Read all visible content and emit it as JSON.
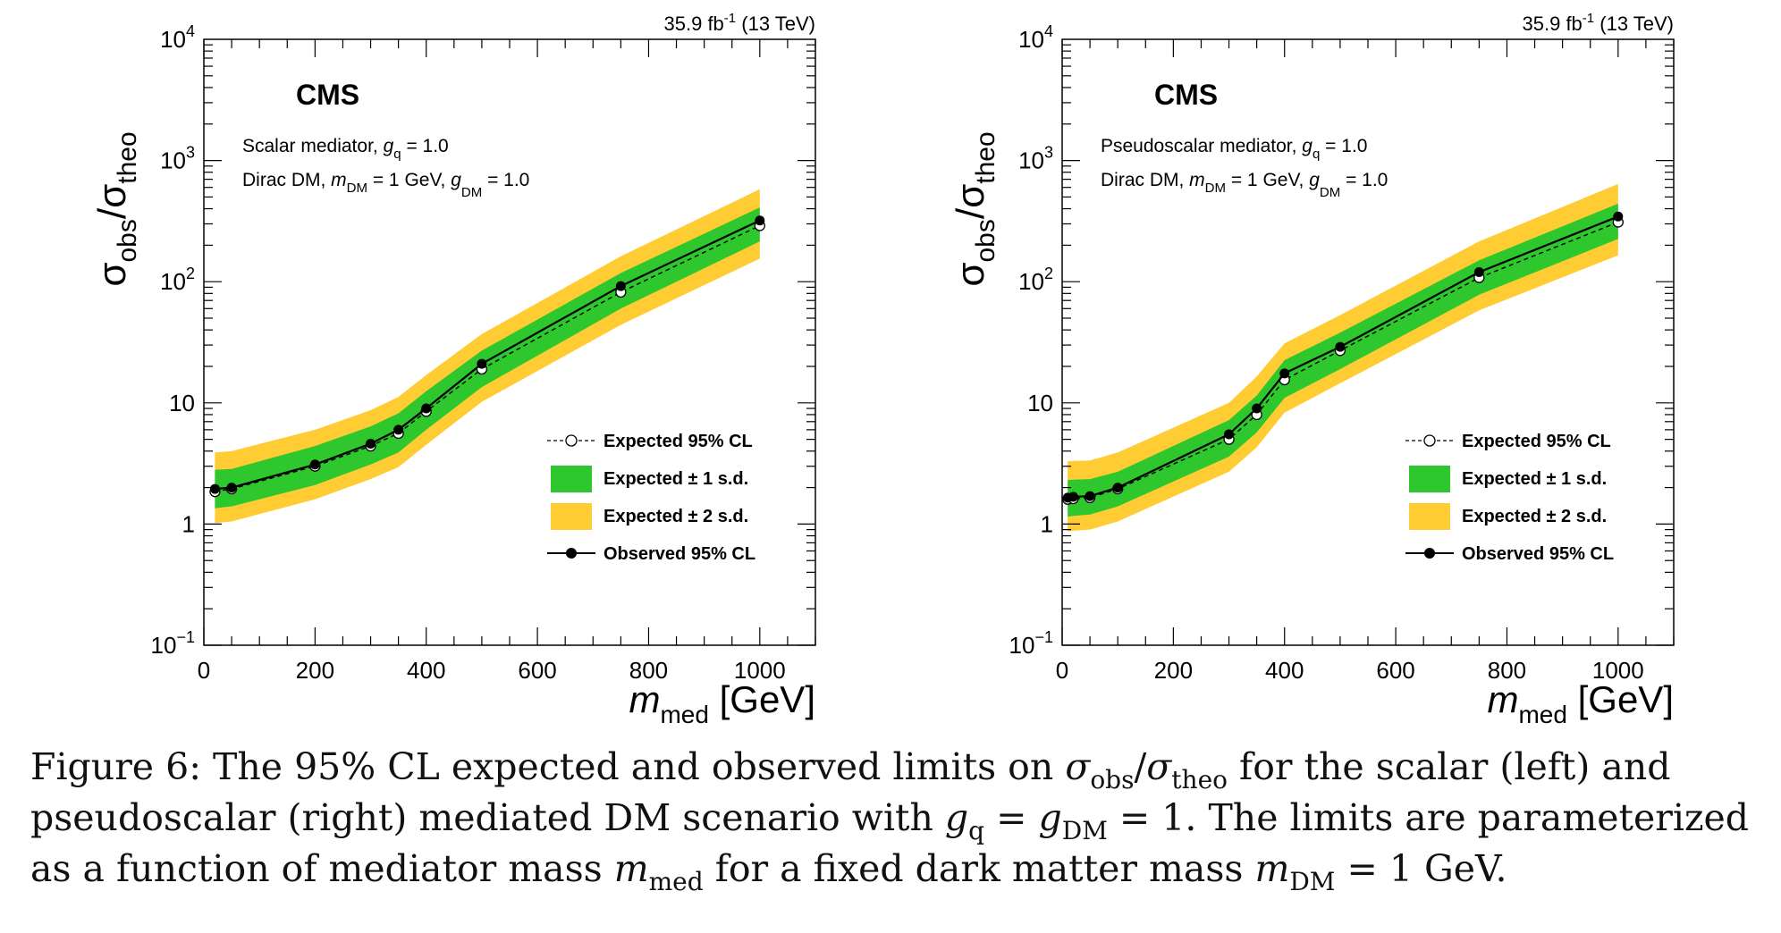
{
  "figure": {
    "caption_label": "Figure 6:",
    "caption_parts": [
      {
        "t": "Figure 6: The 95% CL expected and observed limits on "
      },
      {
        "t": "σ",
        "i": true
      },
      {
        "t": "obs",
        "sub": true
      },
      {
        "t": "/"
      },
      {
        "t": "σ",
        "i": true
      },
      {
        "t": "theo",
        "sub": true
      },
      {
        "t": " for the scalar (left) and pseudoscalar (right) mediated DM scenario with "
      },
      {
        "t": "g",
        "i": true
      },
      {
        "t": "q",
        "sub": true
      },
      {
        "t": " = "
      },
      {
        "t": "g",
        "i": true
      },
      {
        "t": "DM",
        "sub": true
      },
      {
        "t": " = 1. The limits are parameterized as a function of mediator mass "
      },
      {
        "t": "m",
        "i": true
      },
      {
        "t": "med",
        "sub": true
      },
      {
        "t": " for a fixed dark matter mass "
      },
      {
        "t": "m",
        "i": true
      },
      {
        "t": "DM",
        "sub": true
      },
      {
        "t": " = 1 GeV."
      }
    ]
  },
  "chart_data": [
    {
      "type": "line",
      "lumi_label": "35.9 fb",
      "lumi_exp": "-1",
      "energy_label": " (13 TeV)",
      "experiment": "CMS",
      "annotation_line1_prefix": "Scalar mediator, ",
      "annotation_line1_var": "g",
      "annotation_line1_sub": "q",
      "annotation_line1_suffix": " = 1.0",
      "annotation_line2_prefix": "Dirac DM, ",
      "annotation_line2_var1": "m",
      "annotation_line2_sub1": "DM",
      "annotation_line2_mid": " = 1 GeV, ",
      "annotation_line2_var2": "g",
      "annotation_line2_sub2": "DM",
      "annotation_line2_suffix": " = 1.0",
      "ylabel_main": "σ",
      "ylabel_sub1": "obs",
      "ylabel_sep": "/σ",
      "ylabel_sub2": "theo",
      "xlabel_var": "m",
      "xlabel_sub": "med",
      "xlabel_unit": " [GeV]",
      "xlim": [
        0,
        1100
      ],
      "ylim": [
        0.1,
        10000
      ],
      "yscale": "log",
      "x_ticks": [
        "0",
        "200",
        "400",
        "600",
        "800",
        "1000"
      ],
      "y_ticks": [
        {
          "base": "10",
          "exp": "−1",
          "value": 0.1
        },
        {
          "base": "1",
          "exp": "",
          "value": 1
        },
        {
          "base": "10",
          "exp": "",
          "value": 10
        },
        {
          "base": "10",
          "exp": "2",
          "value": 100
        },
        {
          "base": "10",
          "exp": "3",
          "value": 1000
        },
        {
          "base": "10",
          "exp": "4",
          "value": 10000
        }
      ],
      "legend": [
        "Expected 95% CL",
        "Expected ± 1 s.d.",
        "Expected ± 2 s.d.",
        "Observed 95% CL"
      ],
      "colors": {
        "band1": "#2ec72e",
        "band2": "#ffcc33",
        "line": "#000000"
      },
      "x": [
        20,
        50,
        200,
        300,
        350,
        400,
        500,
        750,
        1000
      ],
      "observed": [
        1.95,
        2.0,
        3.1,
        4.6,
        6.0,
        9.0,
        21,
        92,
        320
      ],
      "expected": [
        1.85,
        1.95,
        3.0,
        4.4,
        5.6,
        8.5,
        19,
        82,
        290
      ],
      "band1_low": [
        1.35,
        1.4,
        2.1,
        3.1,
        3.9,
        6.0,
        13.5,
        60,
        215
      ],
      "band1_high": [
        2.8,
        2.85,
        4.4,
        6.4,
        8.2,
        12.5,
        27,
        118,
        410
      ],
      "band2_low": [
        1.02,
        1.05,
        1.6,
        2.35,
        2.95,
        4.5,
        10.2,
        44,
        155
      ],
      "band2_high": [
        3.9,
        4.0,
        6.0,
        8.7,
        11.2,
        17.0,
        37,
        162,
        580
      ]
    },
    {
      "type": "line",
      "lumi_label": "35.9 fb",
      "lumi_exp": "-1",
      "energy_label": " (13 TeV)",
      "experiment": "CMS",
      "annotation_line1_prefix": "Pseudoscalar mediator, ",
      "annotation_line1_var": "g",
      "annotation_line1_sub": "q",
      "annotation_line1_suffix": " = 1.0",
      "annotation_line2_prefix": "Dirac DM, ",
      "annotation_line2_var1": "m",
      "annotation_line2_sub1": "DM",
      "annotation_line2_mid": " = 1 GeV, ",
      "annotation_line2_var2": "g",
      "annotation_line2_sub2": "DM",
      "annotation_line2_suffix": " = 1.0",
      "ylabel_main": "σ",
      "ylabel_sub1": "obs",
      "ylabel_sep": "/σ",
      "ylabel_sub2": "theo",
      "xlabel_var": "m",
      "xlabel_sub": "med",
      "xlabel_unit": " [GeV]",
      "xlim": [
        0,
        1100
      ],
      "ylim": [
        0.1,
        10000
      ],
      "yscale": "log",
      "x_ticks": [
        "0",
        "200",
        "400",
        "600",
        "800",
        "1000"
      ],
      "y_ticks": [
        {
          "base": "10",
          "exp": "−1",
          "value": 0.1
        },
        {
          "base": "1",
          "exp": "",
          "value": 1
        },
        {
          "base": "10",
          "exp": "",
          "value": 10
        },
        {
          "base": "10",
          "exp": "2",
          "value": 100
        },
        {
          "base": "10",
          "exp": "3",
          "value": 1000
        },
        {
          "base": "10",
          "exp": "4",
          "value": 10000
        }
      ],
      "legend": [
        "Expected 95% CL",
        "Expected ± 1 s.d.",
        "Expected ± 2 s.d.",
        "Observed 95% CL"
      ],
      "colors": {
        "band1": "#2ec72e",
        "band2": "#ffcc33",
        "line": "#000000"
      },
      "x": [
        10,
        20,
        50,
        100,
        300,
        350,
        400,
        500,
        750,
        1000
      ],
      "observed": [
        1.65,
        1.68,
        1.7,
        2.0,
        5.5,
        9.0,
        17.5,
        29,
        120,
        345
      ],
      "expected": [
        1.6,
        1.62,
        1.65,
        1.95,
        5.0,
        8.0,
        15.5,
        27,
        108,
        310
      ],
      "band1_low": [
        1.15,
        1.17,
        1.2,
        1.4,
        3.6,
        5.7,
        11.0,
        19,
        78,
        225
      ],
      "band1_high": [
        2.3,
        2.32,
        2.35,
        2.7,
        7.2,
        11.5,
        22.5,
        38,
        150,
        440
      ],
      "band2_low": [
        0.87,
        0.88,
        0.9,
        1.05,
        2.7,
        4.3,
        8.3,
        14.5,
        58,
        165
      ],
      "band2_high": [
        3.3,
        3.32,
        3.35,
        3.9,
        10.0,
        16.5,
        31,
        53,
        215,
        640
      ]
    }
  ]
}
